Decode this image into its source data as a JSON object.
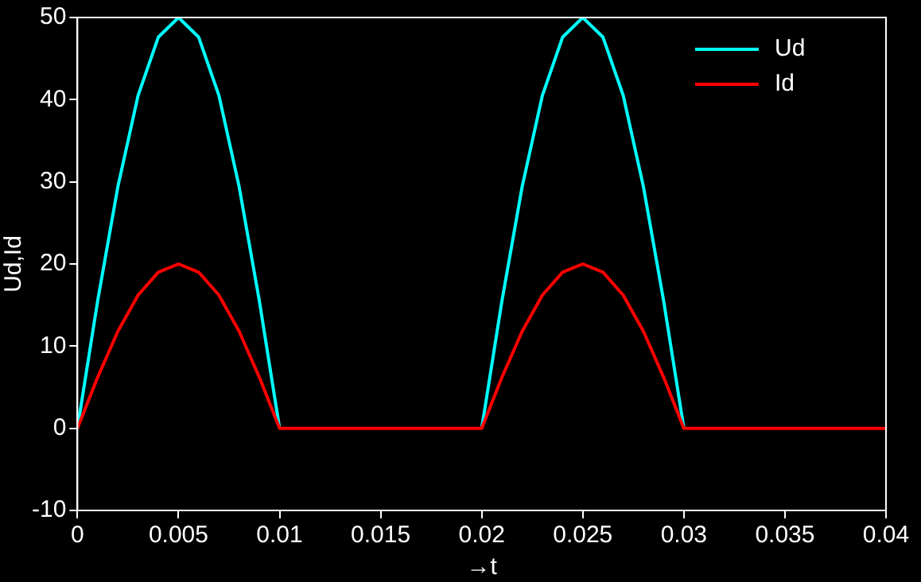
{
  "chart_data": {
    "type": "line",
    "xlabel": "→t",
    "ylabel": "Ud,Id",
    "x": [
      0,
      0.001,
      0.002,
      0.003,
      0.004,
      0.005,
      0.006,
      0.007,
      0.008,
      0.009,
      0.01,
      0.011,
      0.012,
      0.013,
      0.014,
      0.015,
      0.016,
      0.017,
      0.018,
      0.019,
      0.02,
      0.021,
      0.022,
      0.023,
      0.024,
      0.025,
      0.026,
      0.027,
      0.028,
      0.029,
      0.03,
      0.031,
      0.032,
      0.033,
      0.034,
      0.035,
      0.036,
      0.037,
      0.038,
      0.039,
      0.04
    ],
    "series": [
      {
        "name": "Ud",
        "color": "#00ffff",
        "values": [
          0,
          15.5,
          29.4,
          40.5,
          47.6,
          50,
          47.6,
          40.5,
          29.4,
          15.5,
          0,
          null,
          null,
          null,
          null,
          null,
          null,
          null,
          null,
          null,
          0,
          15.5,
          29.4,
          40.5,
          47.6,
          50,
          47.6,
          40.5,
          29.4,
          15.5,
          0,
          null,
          null,
          null,
          null,
          null,
          null,
          null,
          null,
          null,
          null
        ]
      },
      {
        "name": "Id",
        "color": "#ff0000",
        "values": [
          0,
          6.2,
          11.8,
          16.2,
          19,
          20,
          19,
          16.2,
          11.8,
          6.2,
          0,
          0,
          0,
          0,
          0,
          0,
          0,
          0,
          0,
          0,
          0,
          6.2,
          11.8,
          16.2,
          19,
          20,
          19,
          16.2,
          11.8,
          6.2,
          0,
          0,
          0,
          0,
          0,
          0,
          0,
          0,
          0,
          0,
          0
        ]
      }
    ],
    "xlim": [
      0,
      0.04
    ],
    "xticks": [
      0,
      0.005,
      0.01,
      0.015,
      0.02,
      0.025,
      0.03,
      0.035,
      0.04
    ],
    "ylim": [
      -10,
      50
    ],
    "yticks": [
      -10,
      0,
      10,
      20,
      30,
      40,
      50
    ],
    "grid": false,
    "legend": "top right",
    "marker": "none",
    "line_style": "solid"
  }
}
